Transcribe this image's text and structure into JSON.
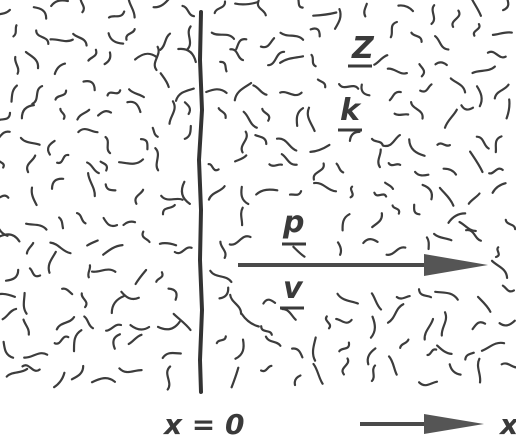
{
  "diagram": {
    "labels": {
      "Z": "Z",
      "k": "k",
      "p": "p",
      "v": "v",
      "x0": "x = 0",
      "x": "x"
    },
    "colors": {
      "ink": "#3a3a3a",
      "arrow": "#4a4a4a",
      "background": "#ffffff"
    }
  }
}
